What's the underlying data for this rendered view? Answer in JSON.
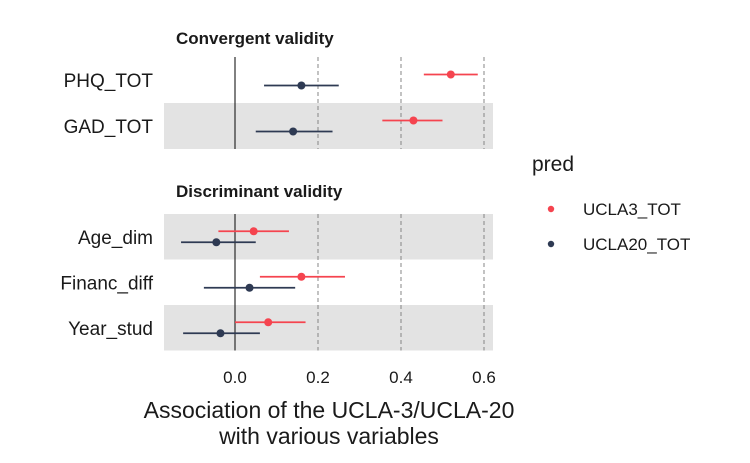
{
  "chart_data": {
    "type": "scatter",
    "subtype": "forest-plot",
    "xlabel_lines": [
      "Association of the UCLA-3/UCLA-20",
      "with various variables"
    ],
    "xticks": [
      0.0,
      0.2,
      0.4,
      0.6
    ],
    "xtick_labels": [
      "0.0",
      "0.2",
      "0.4",
      "0.6"
    ],
    "xlim": [
      -0.17,
      0.63
    ],
    "reference_lines": [
      {
        "x": 0,
        "style": "solid"
      },
      {
        "x": 0.2,
        "style": "dashed"
      },
      {
        "x": 0.4,
        "style": "dashed"
      },
      {
        "x": 0.6,
        "style": "dashed"
      }
    ],
    "legend": {
      "title": "pred",
      "position": "right",
      "entries": [
        {
          "name": "UCLA3_TOT",
          "color": "#f5444f"
        },
        {
          "name": "UCLA20_TOT",
          "color": "#2e3a53"
        }
      ]
    },
    "panels": [
      {
        "title": "Convergent validity",
        "rows": [
          {
            "label": "PHQ_TOT",
            "shaded": false,
            "estimates": [
              {
                "series": "UCLA3_TOT",
                "estimate": 0.52,
                "lo": 0.455,
                "hi": 0.585
              },
              {
                "series": "UCLA20_TOT",
                "estimate": 0.16,
                "lo": 0.07,
                "hi": 0.25
              }
            ]
          },
          {
            "label": "GAD_TOT",
            "shaded": true,
            "estimates": [
              {
                "series": "UCLA3_TOT",
                "estimate": 0.43,
                "lo": 0.355,
                "hi": 0.5
              },
              {
                "series": "UCLA20_TOT",
                "estimate": 0.14,
                "lo": 0.05,
                "hi": 0.235
              }
            ]
          }
        ]
      },
      {
        "title": "Discriminant validity",
        "rows": [
          {
            "label": "Age_dim",
            "shaded": true,
            "estimates": [
              {
                "series": "UCLA3_TOT",
                "estimate": 0.045,
                "lo": -0.04,
                "hi": 0.13
              },
              {
                "series": "UCLA20_TOT",
                "estimate": -0.045,
                "lo": -0.13,
                "hi": 0.05
              }
            ]
          },
          {
            "label": "Financ_diff",
            "shaded": false,
            "estimates": [
              {
                "series": "UCLA3_TOT",
                "estimate": 0.16,
                "lo": 0.06,
                "hi": 0.265
              },
              {
                "series": "UCLA20_TOT",
                "estimate": 0.035,
                "lo": -0.075,
                "hi": 0.145
              }
            ]
          },
          {
            "label": "Year_stud",
            "shaded": true,
            "estimates": [
              {
                "series": "UCLA3_TOT",
                "estimate": 0.08,
                "lo": 0.0,
                "hi": 0.17
              },
              {
                "series": "UCLA20_TOT",
                "estimate": -0.035,
                "lo": -0.125,
                "hi": 0.06
              }
            ]
          }
        ]
      }
    ]
  }
}
